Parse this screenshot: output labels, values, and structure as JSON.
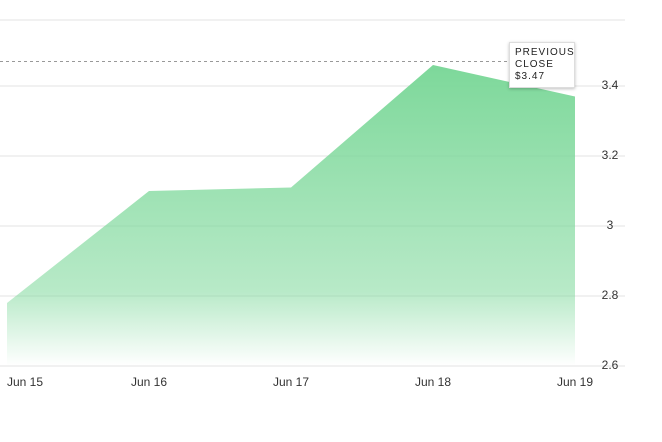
{
  "chart_data": {
    "type": "area",
    "categories": [
      "Jun 15",
      "Jun 16",
      "Jun 17",
      "Jun 18",
      "Jun 19"
    ],
    "values": [
      2.78,
      3.1,
      3.11,
      3.46,
      3.37
    ],
    "color": "#7dd89a",
    "ylim": [
      2.6,
      3.6
    ],
    "yticks": [
      2.6,
      2.8,
      3,
      3.2,
      3.4
    ],
    "grid": true,
    "annotation": {
      "label": "PREVIOUS CLOSE",
      "value": 3.47,
      "value_label": "$3.47"
    }
  }
}
